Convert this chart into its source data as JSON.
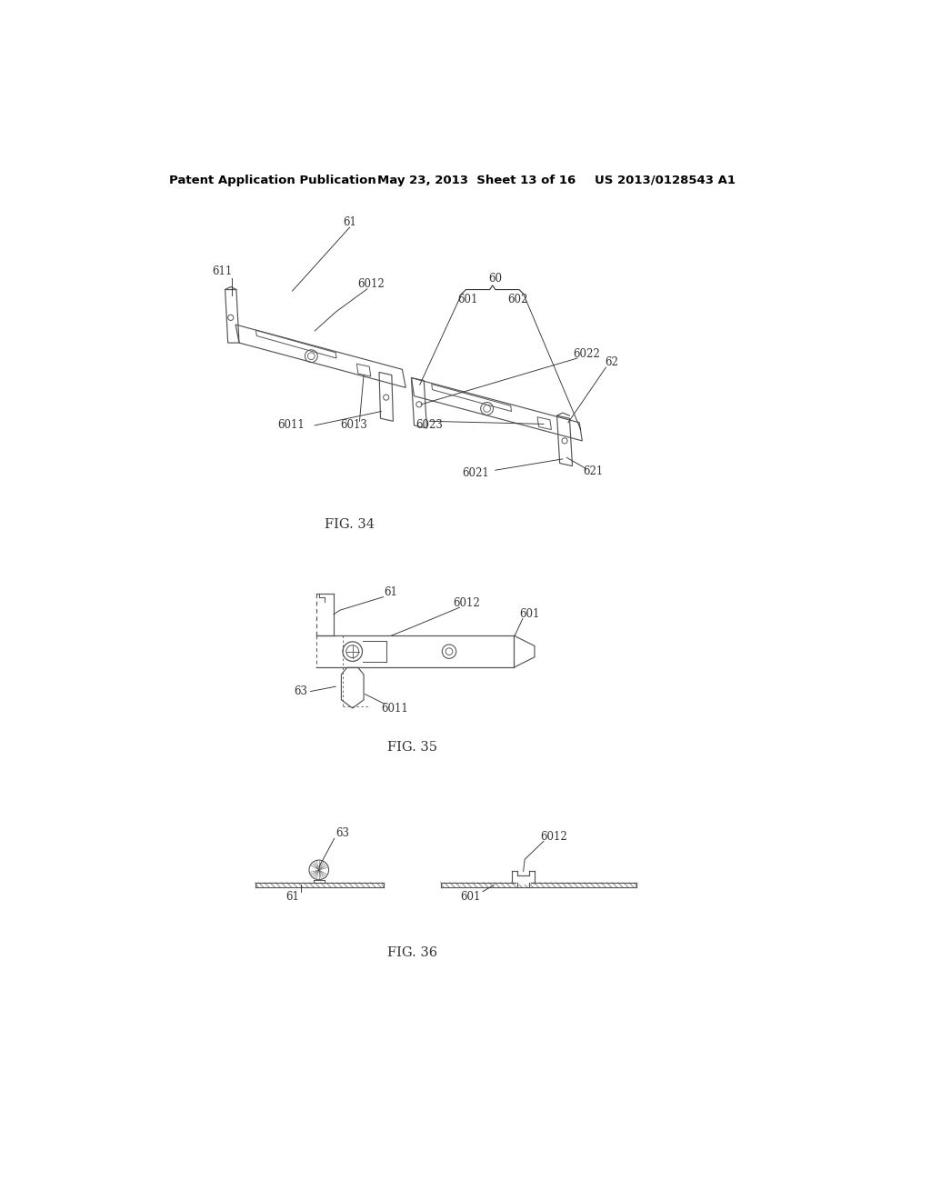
{
  "header_left": "Patent Application Publication",
  "header_middle": "May 23, 2013  Sheet 13 of 16",
  "header_right": "US 2013/0128543 A1",
  "fig34_caption": "FIG. 34",
  "fig35_caption": "FIG. 35",
  "fig36_caption": "FIG. 36",
  "bg_color": "#ffffff",
  "line_color": "#555555",
  "text_color": "#333333",
  "header_color": "#000000"
}
